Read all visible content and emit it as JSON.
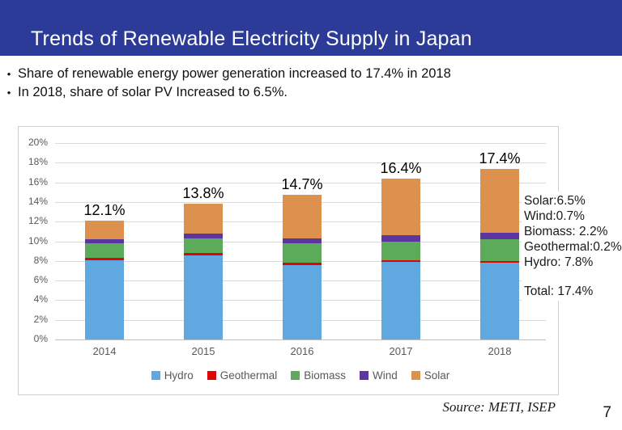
{
  "header": {
    "title": "Trends of Renewable Electricity Supply in Japan",
    "bg_color": "#2B3B97"
  },
  "bullets": [
    "Share of renewable energy power generation increased to 17.4% in 2018",
    "In 2018, share of solar PV Increased to 6.5%."
  ],
  "chart_data": {
    "type": "bar",
    "stacked": true,
    "categories": [
      "2014",
      "2015",
      "2016",
      "2017",
      "2018"
    ],
    "series": [
      {
        "name": "Hydro",
        "color": "#5FA9E0",
        "values": [
          8.1,
          8.6,
          7.6,
          7.9,
          7.8
        ]
      },
      {
        "name": "Geothermal",
        "color": "#E00505",
        "values": [
          0.2,
          0.2,
          0.2,
          0.2,
          0.2
        ]
      },
      {
        "name": "Biomass",
        "color": "#5CAB5A",
        "values": [
          1.5,
          1.5,
          2.0,
          1.9,
          2.2
        ]
      },
      {
        "name": "Wind",
        "color": "#5C35A0",
        "values": [
          0.4,
          0.5,
          0.5,
          0.6,
          0.7
        ]
      },
      {
        "name": "Solar",
        "color": "#DC914E",
        "values": [
          1.9,
          3.0,
          4.4,
          5.8,
          6.5
        ]
      }
    ],
    "totals": [
      12.1,
      13.8,
      14.7,
      16.4,
      17.4
    ],
    "total_labels": [
      "12.1%",
      "13.8%",
      "14.7%",
      "16.4%",
      "17.4%"
    ],
    "title": "",
    "xlabel": "",
    "ylabel": "",
    "ylim": [
      0,
      20
    ],
    "ytick_step": 2,
    "ytick_suffix": "%",
    "grid": true,
    "legend_position": "bottom",
    "annotation": {
      "lines": [
        "Solar:6.5%",
        "Wind:0.7%",
        "Biomass: 2.2%",
        "Geothermal:0.2%",
        "Hydro: 7.8%"
      ],
      "total_line": "Total: 17.4%"
    }
  },
  "footer": {
    "source": "Source: METI, ISEP",
    "page_number": "7"
  }
}
